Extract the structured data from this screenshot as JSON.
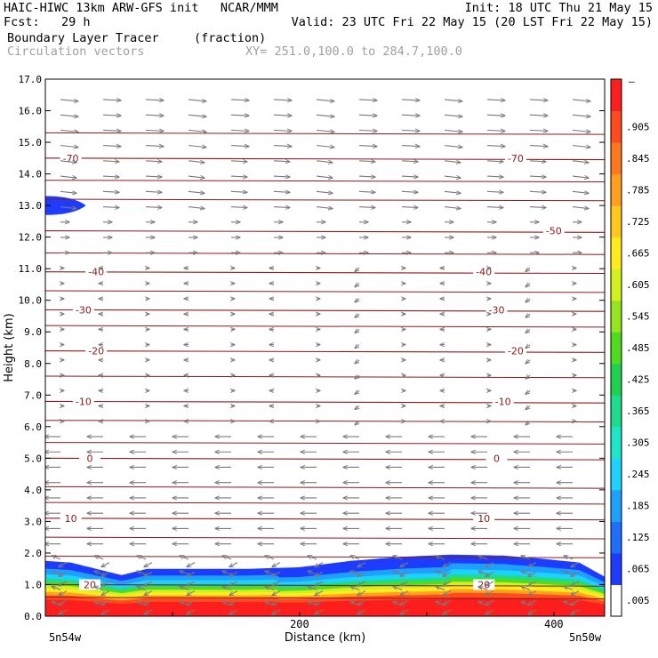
{
  "header": {
    "line1_left": "HAIC-HIWC 13km ARW-GFS init   NCAR/MMM",
    "line1_right": "Init: 18 UTC Thu 21 May 15",
    "line2_left": "Fcst:   29 h",
    "line2_right": "Valid: 23 UTC Fri 22 May 15 (20 LST Fri 22 May 15)",
    "field1_name": "Boundary Layer Tracer",
    "field1_units": "(fraction)",
    "field2_name": "Circulation vectors",
    "field2_info": "XY= 251.0,100.0 to 284.7,100.0"
  },
  "chart_data": {
    "type": "cross-section",
    "xlabel": "Distance (km)",
    "ylabel": "Height (km)",
    "xlim": [
      0,
      440
    ],
    "ylim": [
      0,
      17
    ],
    "x_ticks": [
      200,
      400
    ],
    "x_end_labels": [
      "5n54w",
      "5n50w"
    ],
    "y_ticks": [
      "0.0",
      "1.0",
      "2.0",
      "3.0",
      "4.0",
      "5.0",
      "6.0",
      "7.0",
      "8.0",
      "9.0",
      "10.0",
      "11.0",
      "12.0",
      "13.0",
      "14.0",
      "15.0",
      "16.0",
      "17.0"
    ],
    "colorbar": {
      "labels": [
        ".005",
        ".065",
        ".125",
        ".185",
        ".245",
        ".305",
        ".365",
        ".425",
        ".485",
        ".545",
        ".605",
        ".665",
        ".725",
        ".785",
        ".845",
        ".905"
      ],
      "top_label": "–",
      "colors": [
        "#ffffff",
        "#1e3cff",
        "#1e6eff",
        "#1ea0ff",
        "#1ed2ff",
        "#1ee6c8",
        "#1edc8c",
        "#1ed250",
        "#50dc1e",
        "#96e61e",
        "#d2f01e",
        "#ffeb1e",
        "#ffc81e",
        "#ffa01e",
        "#ff781e",
        "#ff4b1e",
        "#ff1e1e"
      ]
    },
    "isotherms": [
      {
        "temp": -70,
        "y": 14.5,
        "labels": [
          {
            "x": 20,
            "text": "-70"
          },
          {
            "x": 370,
            "text": "-70"
          }
        ]
      },
      {
        "temp": -50,
        "y": 12.2,
        "labels": [
          {
            "x": 400,
            "text": "-50"
          }
        ]
      },
      {
        "temp": -40,
        "y": 10.9,
        "labels": [
          {
            "x": 40,
            "text": "-40"
          },
          {
            "x": 345,
            "text": "-40"
          }
        ]
      },
      {
        "temp": -30,
        "y": 9.7,
        "labels": [
          {
            "x": 30,
            "text": "-30"
          },
          {
            "x": 355,
            "text": "-30"
          }
        ]
      },
      {
        "temp": -20,
        "y": 8.4,
        "labels": [
          {
            "x": 40,
            "text": "-20"
          },
          {
            "x": 370,
            "text": "-20"
          }
        ]
      },
      {
        "temp": -10,
        "y": 6.8,
        "labels": [
          {
            "x": 30,
            "text": "-10"
          },
          {
            "x": 360,
            "text": "-10"
          }
        ]
      },
      {
        "temp": 0,
        "y": 5.0,
        "labels": [
          {
            "x": 35,
            "text": "0"
          },
          {
            "x": 355,
            "text": "0"
          }
        ]
      },
      {
        "temp": 10,
        "y": 3.1,
        "labels": [
          {
            "x": 20,
            "text": "10"
          },
          {
            "x": 345,
            "text": "10"
          }
        ]
      },
      {
        "temp": 20,
        "y": 1.0,
        "labels": [
          {
            "x": 35,
            "text": "20"
          },
          {
            "x": 345,
            "text": "20"
          }
        ]
      }
    ],
    "extra_contours": [
      15.3,
      13.8,
      13.2,
      11.5,
      10.3,
      9.2,
      7.6,
      6.2,
      5.5,
      4.1,
      3.6,
      2.5,
      1.9,
      0.6
    ],
    "tracer_pbl_top": [
      [
        0,
        1.75
      ],
      [
        20,
        1.7
      ],
      [
        45,
        1.45
      ],
      [
        60,
        1.3
      ],
      [
        80,
        1.5
      ],
      [
        120,
        1.5
      ],
      [
        160,
        1.5
      ],
      [
        200,
        1.55
      ],
      [
        240,
        1.75
      ],
      [
        280,
        1.88
      ],
      [
        320,
        1.95
      ],
      [
        360,
        1.92
      ],
      [
        390,
        1.82
      ],
      [
        420,
        1.7
      ],
      [
        440,
        1.25
      ]
    ],
    "tracer_upper_blob": {
      "x_end": 32,
      "y_center": 13.0,
      "half_depth": 0.3
    }
  }
}
